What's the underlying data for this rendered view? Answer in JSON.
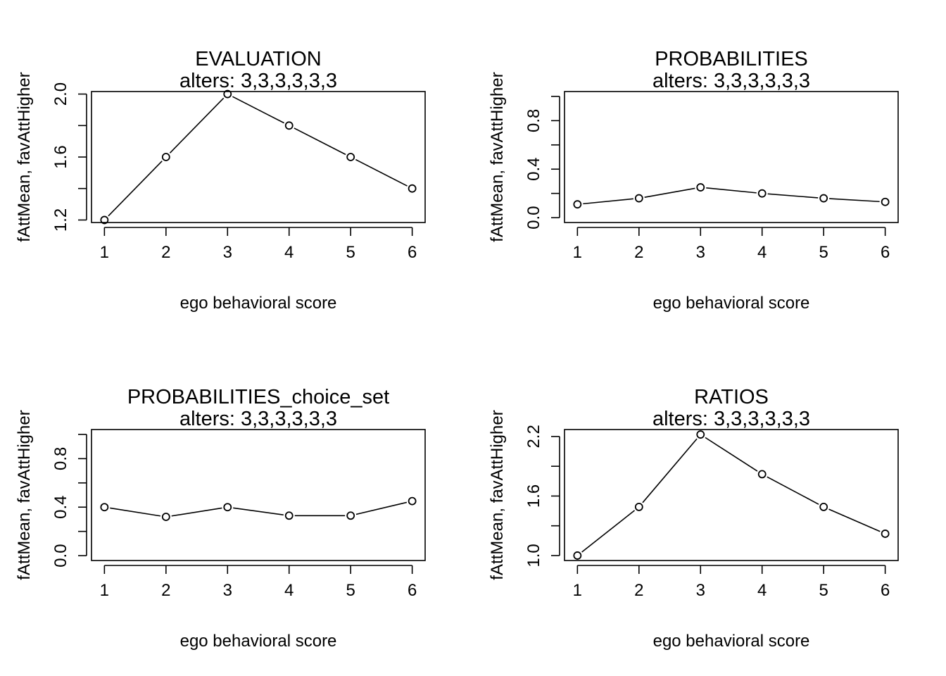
{
  "figure": {
    "background": "#ffffff",
    "line_color": "#000000"
  },
  "chart_data": [
    {
      "type": "line",
      "title": "EVALUATION",
      "subtitle": "alters: 3,3,3,3,3,3",
      "xlabel": "ego behavioral score",
      "ylabel": "fAttMean, favAttHigher",
      "x": [
        1,
        2,
        3,
        4,
        5,
        6
      ],
      "series": [
        {
          "values": [
            1.2,
            1.6,
            2.0,
            1.8,
            1.6,
            1.4
          ]
        }
      ],
      "xlim": [
        0.79,
        6.21
      ],
      "ylim": [
        1.184,
        2.016
      ],
      "xticks": [
        1,
        2,
        3,
        4,
        5,
        6
      ],
      "xtick_labels": [
        "1",
        "2",
        "3",
        "4",
        "5",
        "6"
      ],
      "yticks": [
        1.2,
        1.4,
        1.6,
        1.8,
        2.0
      ],
      "ytick_labels": [
        "1.2",
        "",
        "1.6",
        "",
        "2.0"
      ],
      "marker": "open-circle",
      "grid": false,
      "legend": "none"
    },
    {
      "type": "line",
      "title": "PROBABILITIES",
      "subtitle": "alters: 3,3,3,3,3,3",
      "xlabel": "ego behavioral score",
      "ylabel": "fAttMean, favAttHigher",
      "x": [
        1,
        2,
        3,
        4,
        5,
        6
      ],
      "series": [
        {
          "values": [
            0.11,
            0.16,
            0.25,
            0.2,
            0.16,
            0.13
          ]
        }
      ],
      "xlim": [
        0.79,
        6.21
      ],
      "ylim": [
        -0.04,
        1.04
      ],
      "xticks": [
        1,
        2,
        3,
        4,
        5,
        6
      ],
      "xtick_labels": [
        "1",
        "2",
        "3",
        "4",
        "5",
        "6"
      ],
      "yticks": [
        0.0,
        0.2,
        0.4,
        0.6,
        0.8,
        1.0
      ],
      "ytick_labels": [
        "0.0",
        "",
        "0.4",
        "",
        "0.8",
        ""
      ],
      "marker": "open-circle",
      "grid": false,
      "legend": "none"
    },
    {
      "type": "line",
      "title": "PROBABILITIES_choice_set",
      "subtitle": "alters: 3,3,3,3,3,3",
      "xlabel": "ego behavioral score",
      "ylabel": "fAttMean, favAttHigher",
      "x": [
        1,
        2,
        3,
        4,
        5,
        6
      ],
      "series": [
        {
          "values": [
            0.4,
            0.32,
            0.4,
            0.33,
            0.33,
            0.45
          ]
        }
      ],
      "xlim": [
        0.79,
        6.21
      ],
      "ylim": [
        -0.04,
        1.04
      ],
      "xticks": [
        1,
        2,
        3,
        4,
        5,
        6
      ],
      "xtick_labels": [
        "1",
        "2",
        "3",
        "4",
        "5",
        "6"
      ],
      "yticks": [
        0.0,
        0.2,
        0.4,
        0.6,
        0.8,
        1.0
      ],
      "ytick_labels": [
        "0.0",
        "",
        "0.4",
        "",
        "0.8",
        ""
      ],
      "marker": "open-circle",
      "grid": false,
      "legend": "none"
    },
    {
      "type": "line",
      "title": "RATIOS",
      "subtitle": "alters: 3,3,3,3,3,3",
      "xlabel": "ego behavioral score",
      "ylabel": "fAttMean, favAttHigher",
      "x": [
        1,
        2,
        3,
        4,
        5,
        6
      ],
      "series": [
        {
          "values": [
            1.0,
            1.49,
            2.22,
            1.82,
            1.49,
            1.22
          ]
        }
      ],
      "xlim": [
        0.79,
        6.21
      ],
      "ylim": [
        0.95,
        2.27
      ],
      "xticks": [
        1,
        2,
        3,
        4,
        5,
        6
      ],
      "xtick_labels": [
        "1",
        "2",
        "3",
        "4",
        "5",
        "6"
      ],
      "yticks": [
        1.0,
        1.3,
        1.6,
        1.9,
        2.2
      ],
      "ytick_labels": [
        "1.0",
        "",
        "1.6",
        "",
        "2.2"
      ],
      "marker": "open-circle",
      "grid": false,
      "legend": "none"
    }
  ]
}
